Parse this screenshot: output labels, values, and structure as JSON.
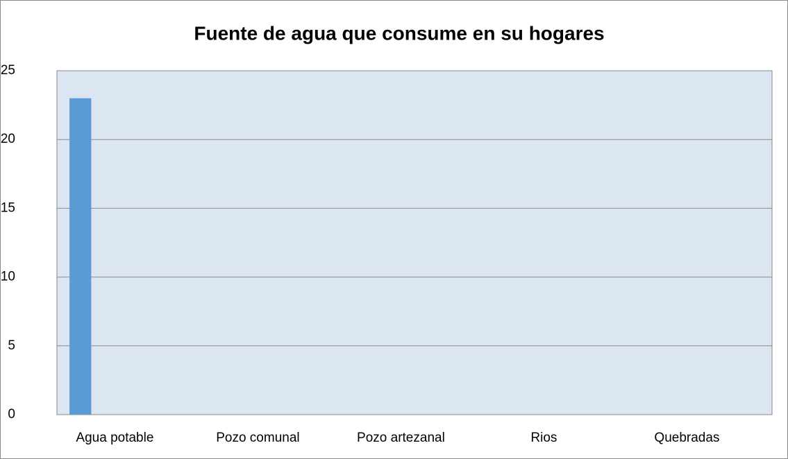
{
  "chart_data": {
    "type": "bar",
    "title": "Fuente de agua que consume en su hogares",
    "categories": [
      "Agua potable",
      "Pozo comunal",
      "Pozo artezanal",
      "Rios",
      "Quebradas"
    ],
    "values": [
      23,
      0,
      0,
      0,
      0
    ],
    "color": "#5b9bd5",
    "ylim": [
      0,
      25
    ],
    "yticks": [
      0,
      5,
      10,
      15,
      20,
      25
    ],
    "grid": true
  }
}
